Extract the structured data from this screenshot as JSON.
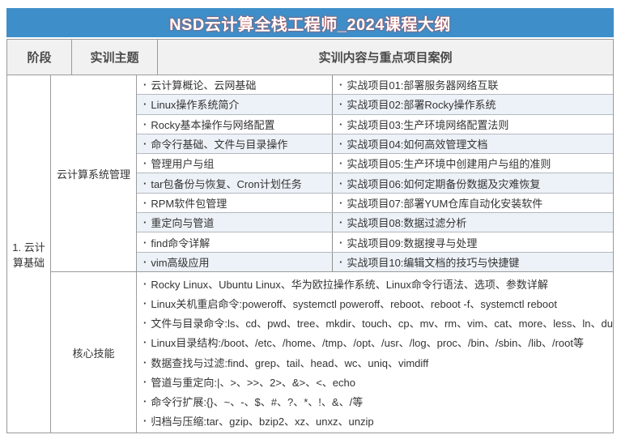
{
  "title": "NSD云计算全栈工程师_2024课程大纲",
  "glyphs": {
    "bullet": "·"
  },
  "colors": {
    "title_bg": "#3E8EC9",
    "title_text": "#FFFFFF",
    "title_fringe": "#D63828",
    "header_bg": "#F1F1F1",
    "stripe_row_bg": "#EDF2F8",
    "border_major": "#9A9A9A",
    "border_row": "#B3B9BF",
    "text": "#333333"
  },
  "header": {
    "stage": "阶段",
    "theme": "实训主题",
    "content": "实训内容与重点项目案例"
  },
  "stage": {
    "label": "1. 云计算基础"
  },
  "sections": [
    {
      "theme": "云计算系统管理",
      "topics": [
        "云计算概论、云网基础",
        "Linux操作系统简介",
        "Rocky基本操作与网络配置",
        "命令行基础、文件与目录操作",
        "管理用户与组",
        "tar包备份与恢复、Cron计划任务",
        "RPM软件包管理",
        "重定向与管道",
        "find命令详解",
        "vim高级应用"
      ],
      "projects": [
        "实战项目01:部署服务器网络互联",
        "实战项目02:部署Rocky操作系统",
        "实战项目03:生产环境网络配置法则",
        "实战项目04:如何高效管理文档",
        "实战项目05:生产环境中创建用户与组的准则",
        "实战项目06:如何定期备份数据及灾难恢复",
        "实战项目07:部署YUM仓库自动化安装软件",
        "实战项目08:数据过滤分析",
        "实战项目09:数据搜寻与处理",
        "实战项目10:编辑文档的技巧与快捷键"
      ]
    },
    {
      "theme": "核心技能",
      "skills": [
        "Rocky Linux、Ubuntu Linux、华为欧拉操作系统、Linux命令行语法、选项、参数详解",
        "Linux关机重启命令:poweroff、systemctl poweroff、reboot、reboot -f、systemctl reboot",
        "文件与目录命令:ls、cd、pwd、tree、mkdir、touch、cp、mv、rm、vim、cat、more、less、ln、du",
        "Linux目录结构:/boot、/etc、/home、/tmp、/opt、/usr、/log、proc、/bin、/sbin、/lib、/root等",
        "数据查找与过滤:find、grep、tail、head、wc、uniq、vimdiff",
        "管道与重定向:|、>、>>、2>、&>、<、echo",
        "命令行扩展:{}、~、-、$、#、?、*、!、&、/等",
        "归档与压缩:tar、gzip、bzip2、xz、unxz、unzip"
      ]
    }
  ]
}
